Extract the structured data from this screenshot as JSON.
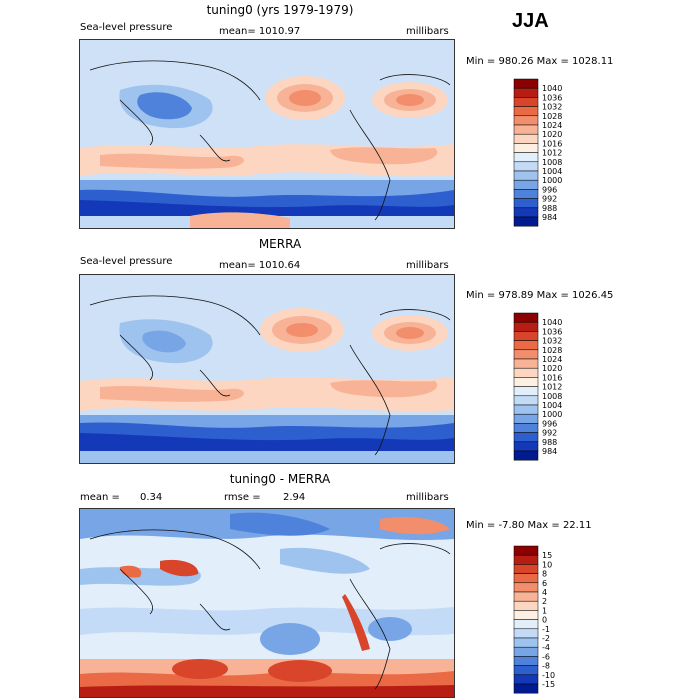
{
  "season": "JJA",
  "panels": [
    {
      "title": "tuning0 (yrs 1979-1979)",
      "field_label": "Sea-level pressure",
      "stat1": "mean= 1010.97",
      "stat2": "",
      "units": "millibars",
      "minmax": "Min = 980.26 Max = 1028.11",
      "colorbar": {
        "labels": [
          "1040",
          "1036",
          "1032",
          "1028",
          "1024",
          "1020",
          "1016",
          "1012",
          "1008",
          "1004",
          "1000",
          "996",
          "992",
          "988",
          "984"
        ],
        "colors": [
          "#8b0000",
          "#b81d13",
          "#d8452a",
          "#ea6a45",
          "#f28e6c",
          "#f8b397",
          "#fcd6c0",
          "#fdf0e3",
          "#e3eefb",
          "#c3dbf6",
          "#9fc3ef",
          "#77a5e6",
          "#4f82db",
          "#2d5fcf",
          "#1338b8",
          "#001b8f"
        ]
      }
    },
    {
      "title": "MERRA",
      "field_label": "Sea-level pressure",
      "stat1": "mean= 1010.64",
      "stat2": "",
      "units": "millibars",
      "minmax": "Min = 978.89 Max = 1026.45",
      "colorbar": {
        "labels": [
          "1040",
          "1036",
          "1032",
          "1028",
          "1024",
          "1020",
          "1016",
          "1012",
          "1008",
          "1004",
          "1000",
          "996",
          "992",
          "988",
          "984"
        ],
        "colors": [
          "#8b0000",
          "#b81d13",
          "#d8452a",
          "#ea6a45",
          "#f28e6c",
          "#f8b397",
          "#fcd6c0",
          "#fdf0e3",
          "#e3eefb",
          "#c3dbf6",
          "#9fc3ef",
          "#77a5e6",
          "#4f82db",
          "#2d5fcf",
          "#1338b8",
          "#001b8f"
        ]
      }
    },
    {
      "title": "tuning0 - MERRA",
      "field_label": "mean =",
      "field_value": "0.34",
      "stat1": "rmse =",
      "stat2": "2.94",
      "units": "millibars",
      "minmax": "Min = -7.80 Max = 22.11",
      "colorbar": {
        "labels": [
          "15",
          "10",
          "8",
          "6",
          "4",
          "2",
          "1",
          "0",
          "-1",
          "-2",
          "-4",
          "-6",
          "-8",
          "-10",
          "-15"
        ],
        "colors": [
          "#8b0000",
          "#b81d13",
          "#d8452a",
          "#ea6a45",
          "#f28e6c",
          "#f8b397",
          "#fcd6c0",
          "#fdf0e3",
          "#e3eefb",
          "#c3dbf6",
          "#9fc3ef",
          "#77a5e6",
          "#4f82db",
          "#2d5fcf",
          "#1338b8",
          "#001b8f"
        ]
      }
    }
  ]
}
